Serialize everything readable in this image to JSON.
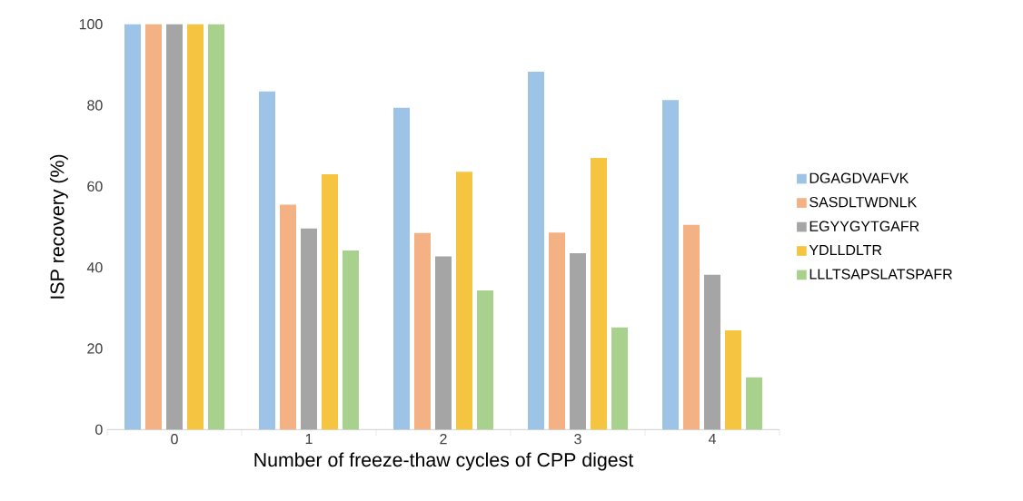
{
  "chart_data": {
    "type": "bar",
    "xlabel": "Number of freeze-thaw cycles of CPP digest",
    "ylabel": "ISP recovery (%)",
    "categories": [
      "0",
      "1",
      "2",
      "3",
      "4"
    ],
    "series": [
      {
        "name": "DGAGDVAFVK",
        "color": "#9dc3e6",
        "values": [
          100,
          83.4,
          79.4,
          88.3,
          81.3
        ]
      },
      {
        "name": "SASDLTWDNLK",
        "color": "#f4b183",
        "values": [
          100,
          55.5,
          48.5,
          48.6,
          50.5
        ]
      },
      {
        "name": "EGYYGYTGAFR",
        "color": "#a5a5a5",
        "values": [
          100,
          49.6,
          42.7,
          43.5,
          38.2
        ]
      },
      {
        "name": "YDLLDLTR",
        "color": "#f5c542",
        "values": [
          100,
          63,
          63.6,
          67,
          24.5
        ]
      },
      {
        "name": "LLLTSAPSLATSPAFR",
        "color": "#a9d18e",
        "values": [
          100,
          44.2,
          34.3,
          25.2,
          12.9
        ]
      }
    ],
    "ylim": [
      0,
      100
    ],
    "yticks": [
      0,
      20,
      40,
      60,
      80,
      100
    ],
    "legend": "right"
  }
}
